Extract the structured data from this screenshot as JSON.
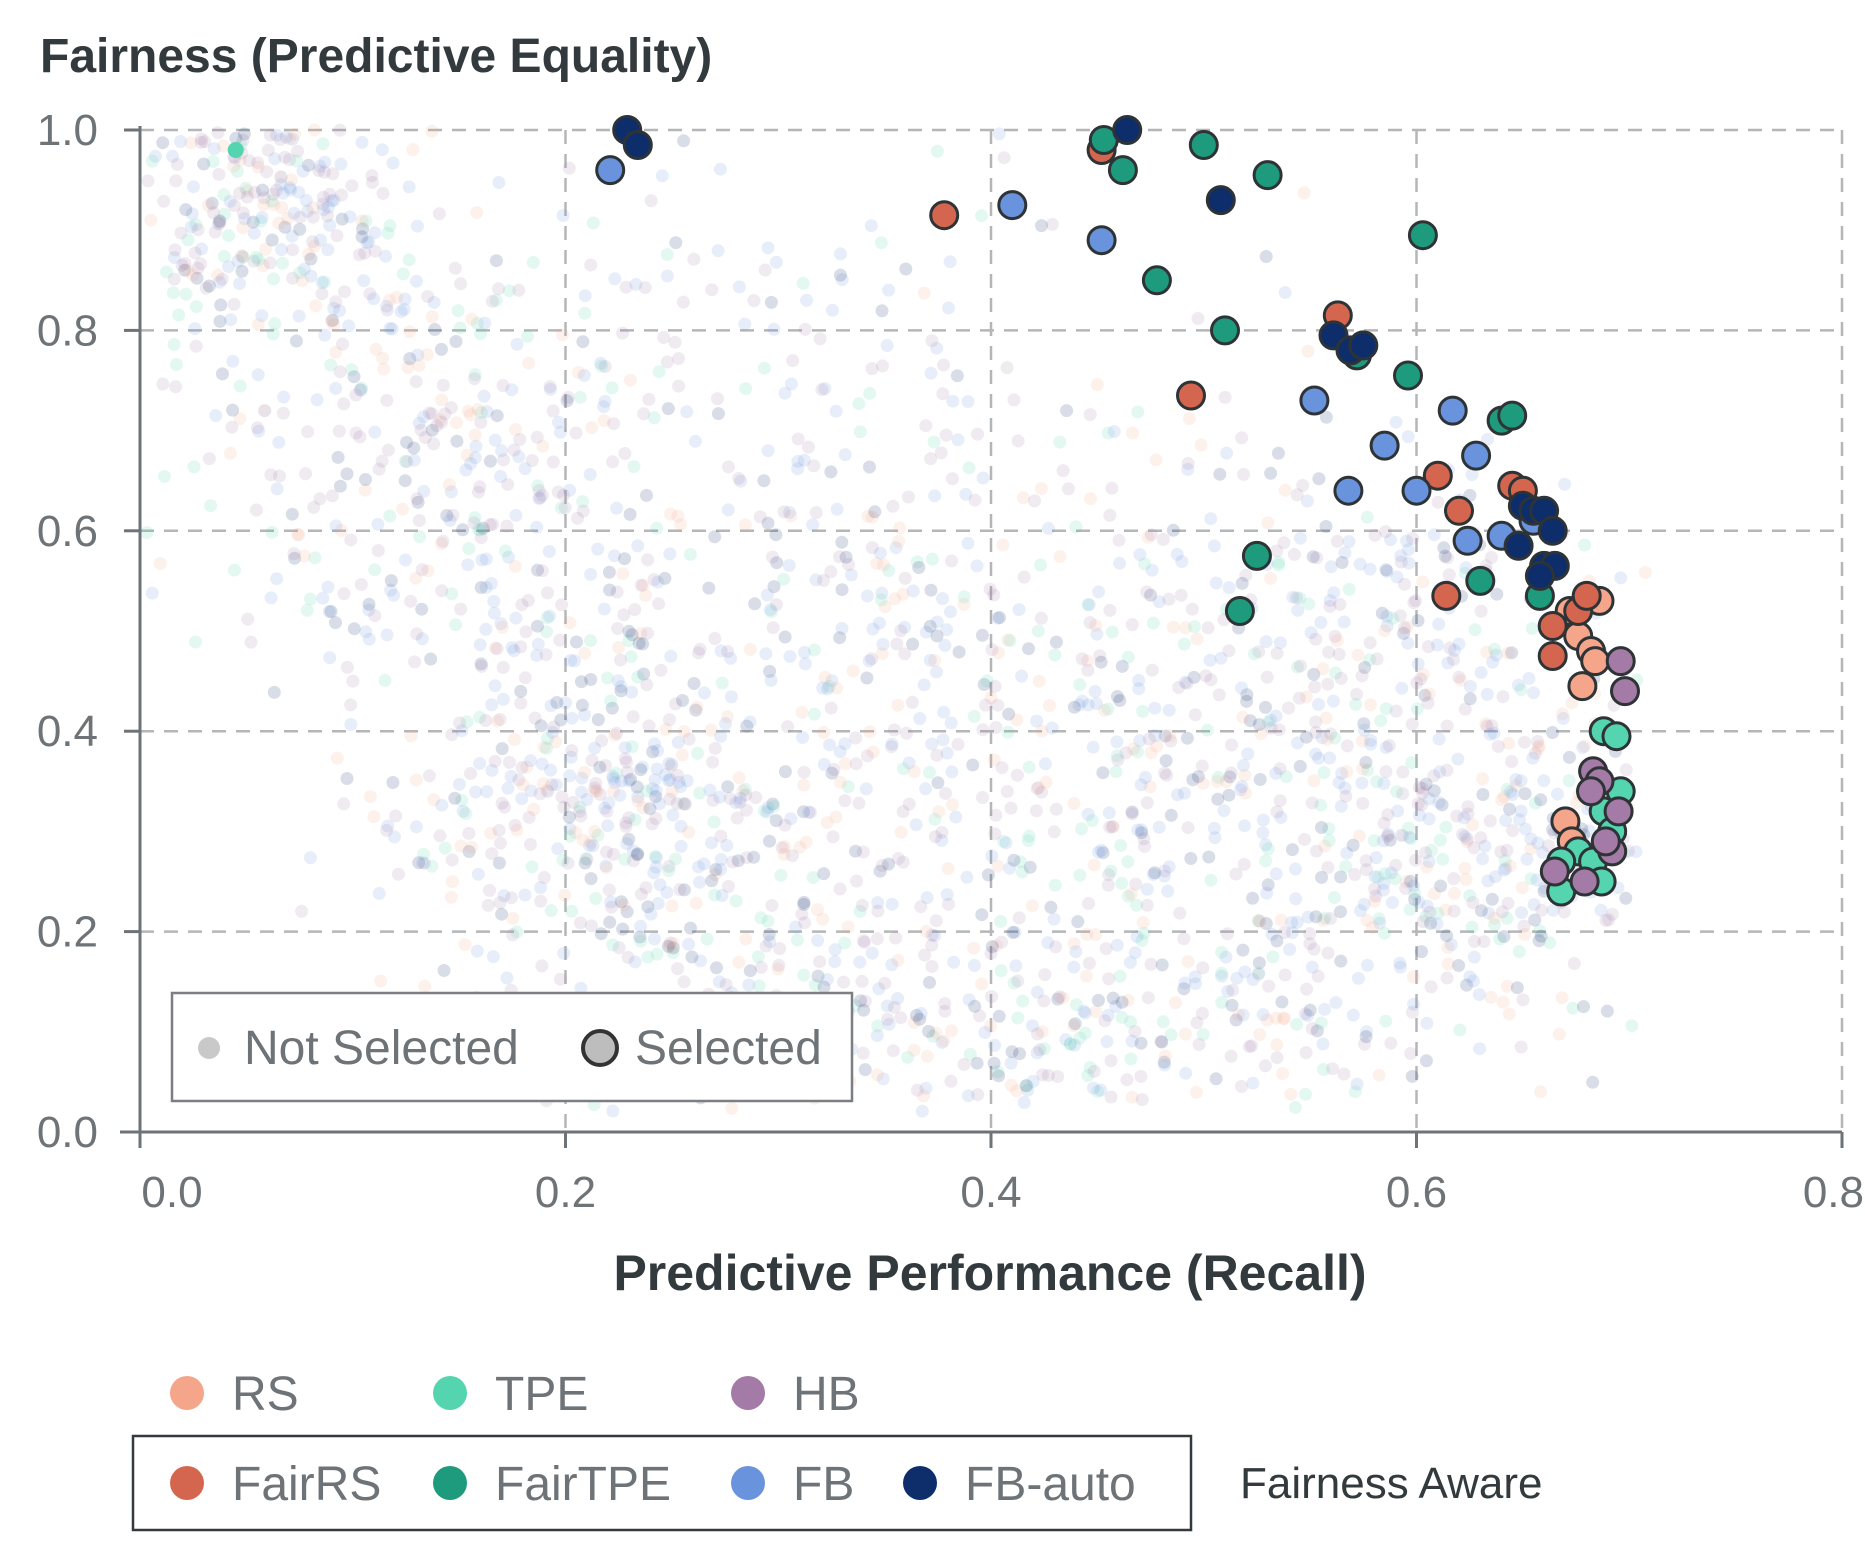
{
  "chart_data": {
    "type": "scatter",
    "title": "Fairness (Predictive Equality)",
    "xlabel": "Predictive Performance (Recall)",
    "ylabel": "",
    "xlim": [
      0.0,
      0.8
    ],
    "ylim": [
      0.0,
      1.0
    ],
    "x_ticks": [
      "0.0",
      "0.2",
      "0.4",
      "0.6",
      "0.8"
    ],
    "y_ticks": [
      "0.0",
      "0.2",
      "0.4",
      "0.6",
      "0.8",
      "1.0"
    ],
    "grid": true,
    "marker_legend": {
      "not_selected": "Not Selected",
      "selected": "Selected"
    },
    "methods": [
      {
        "name": "RS",
        "color": "#f5a58a",
        "fairness_aware": false
      },
      {
        "name": "TPE",
        "color": "#55d4b0",
        "fairness_aware": false
      },
      {
        "name": "HB",
        "color": "#a47aa6",
        "fairness_aware": false
      },
      {
        "name": "FairRS",
        "color": "#d4664f",
        "fairness_aware": true
      },
      {
        "name": "FairTPE",
        "color": "#1e9b7c",
        "fairness_aware": true
      },
      {
        "name": "FB",
        "color": "#6a93de",
        "fairness_aware": true
      },
      {
        "name": "FB-auto",
        "color": "#0d2d6b",
        "fairness_aware": true
      }
    ],
    "fairness_aware_label": "Fairness Aware",
    "selected_series": [
      {
        "name": "RS",
        "points": [
          [
            0.672,
            0.52
          ],
          [
            0.676,
            0.495
          ],
          [
            0.682,
            0.48
          ],
          [
            0.684,
            0.47
          ],
          [
            0.678,
            0.445
          ],
          [
            0.686,
            0.53
          ],
          [
            0.67,
            0.31
          ],
          [
            0.673,
            0.29
          ]
        ]
      },
      {
        "name": "TPE",
        "points": [
          [
            0.045,
            0.98
          ],
          [
            0.688,
            0.4
          ],
          [
            0.694,
            0.395
          ],
          [
            0.696,
            0.34
          ],
          [
            0.688,
            0.32
          ],
          [
            0.676,
            0.28
          ],
          [
            0.668,
            0.27
          ],
          [
            0.683,
            0.27
          ],
          [
            0.668,
            0.24
          ],
          [
            0.687,
            0.25
          ],
          [
            0.692,
            0.3
          ]
        ]
      },
      {
        "name": "HB",
        "points": [
          [
            0.696,
            0.47
          ],
          [
            0.698,
            0.44
          ],
          [
            0.683,
            0.36
          ],
          [
            0.686,
            0.35
          ],
          [
            0.695,
            0.32
          ],
          [
            0.692,
            0.28
          ],
          [
            0.689,
            0.29
          ],
          [
            0.665,
            0.26
          ],
          [
            0.679,
            0.25
          ],
          [
            0.682,
            0.34
          ]
        ]
      },
      {
        "name": "FairRS",
        "points": [
          [
            0.378,
            0.915
          ],
          [
            0.452,
            0.98
          ],
          [
            0.494,
            0.735
          ],
          [
            0.563,
            0.815
          ],
          [
            0.61,
            0.655
          ],
          [
            0.645,
            0.645
          ],
          [
            0.65,
            0.64
          ],
          [
            0.62,
            0.62
          ],
          [
            0.614,
            0.535
          ],
          [
            0.664,
            0.505
          ],
          [
            0.676,
            0.52
          ],
          [
            0.68,
            0.535
          ],
          [
            0.664,
            0.475
          ]
        ]
      },
      {
        "name": "FairTPE",
        "points": [
          [
            0.453,
            0.99
          ],
          [
            0.462,
            0.96
          ],
          [
            0.5,
            0.985
          ],
          [
            0.53,
            0.955
          ],
          [
            0.603,
            0.895
          ],
          [
            0.478,
            0.85
          ],
          [
            0.51,
            0.8
          ],
          [
            0.572,
            0.775
          ],
          [
            0.596,
            0.755
          ],
          [
            0.64,
            0.71
          ],
          [
            0.645,
            0.715
          ],
          [
            0.525,
            0.575
          ],
          [
            0.517,
            0.52
          ],
          [
            0.63,
            0.55
          ],
          [
            0.658,
            0.535
          ]
        ]
      },
      {
        "name": "FB",
        "points": [
          [
            0.221,
            0.96
          ],
          [
            0.41,
            0.925
          ],
          [
            0.452,
            0.89
          ],
          [
            0.552,
            0.73
          ],
          [
            0.585,
            0.685
          ],
          [
            0.617,
            0.72
          ],
          [
            0.628,
            0.675
          ],
          [
            0.568,
            0.64
          ],
          [
            0.6,
            0.64
          ],
          [
            0.64,
            0.595
          ],
          [
            0.655,
            0.61
          ],
          [
            0.624,
            0.59
          ]
        ]
      },
      {
        "name": "FB-auto",
        "points": [
          [
            0.229,
            1.0
          ],
          [
            0.234,
            0.985
          ],
          [
            0.464,
            1.0
          ],
          [
            0.508,
            0.93
          ],
          [
            0.561,
            0.795
          ],
          [
            0.569,
            0.78
          ],
          [
            0.575,
            0.785
          ],
          [
            0.65,
            0.625
          ],
          [
            0.655,
            0.62
          ],
          [
            0.66,
            0.62
          ],
          [
            0.648,
            0.585
          ],
          [
            0.664,
            0.6
          ],
          [
            0.66,
            0.565
          ],
          [
            0.665,
            0.565
          ],
          [
            0.658,
            0.555
          ]
        ]
      }
    ]
  }
}
